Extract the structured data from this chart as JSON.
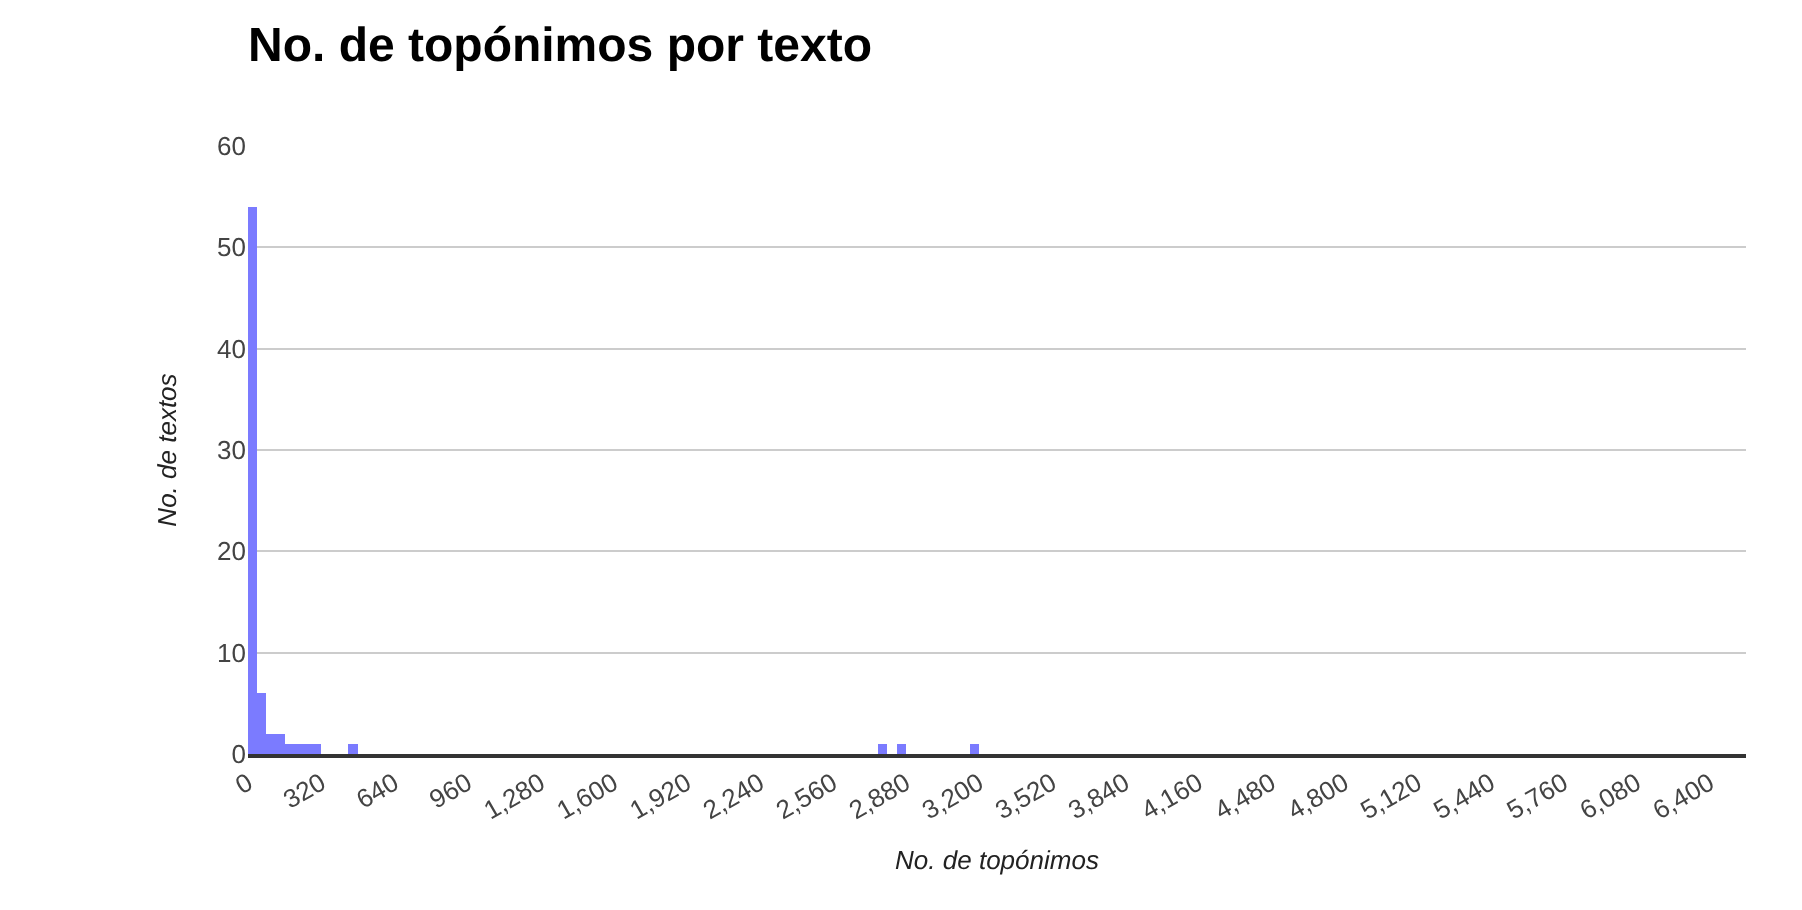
{
  "chart_data": {
    "type": "histogram",
    "title": "No. de topónimos por texto",
    "xlabel": "No. de topónimos",
    "ylabel": "No. de textos",
    "bins": [
      0,
      40,
      80,
      120,
      160,
      200,
      240,
      280,
      320,
      440,
      480,
      2760,
      2800,
      2840,
      2880,
      3160,
      3200
    ],
    "values": [
      54,
      6,
      2,
      2,
      1,
      1,
      1,
      1,
      0,
      1,
      0,
      1,
      0,
      1,
      0,
      1
    ],
    "color": "#7b7bff",
    "xlim": [
      0,
      6560
    ],
    "xticks": [
      0,
      320,
      640,
      960,
      {
        "value": 1280,
        "label": "1,280"
      },
      {
        "value": 1600,
        "label": "1,600"
      },
      {
        "value": 1920,
        "label": "1,920"
      },
      {
        "value": 2240,
        "label": "2,240"
      },
      {
        "value": 2560,
        "label": "2,560"
      },
      {
        "value": 2880,
        "label": "2,880"
      },
      {
        "value": 3200,
        "label": "3,200"
      },
      {
        "value": 3520,
        "label": "3,520"
      },
      {
        "value": 3840,
        "label": "3,840"
      },
      {
        "value": 4160,
        "label": "4,160"
      },
      {
        "value": 4480,
        "label": "4,480"
      },
      {
        "value": 4800,
        "label": "4,800"
      },
      {
        "value": 5120,
        "label": "5,120"
      },
      {
        "value": 5440,
        "label": "5,440"
      },
      {
        "value": 5760,
        "label": "5,760"
      },
      {
        "value": 6080,
        "label": "6,080"
      },
      {
        "value": 6400,
        "label": "6,400"
      }
    ],
    "ylim": [
      0,
      60
    ],
    "yticks": [
      0,
      10,
      20,
      30,
      40,
      50,
      60
    ],
    "grid": "y"
  }
}
